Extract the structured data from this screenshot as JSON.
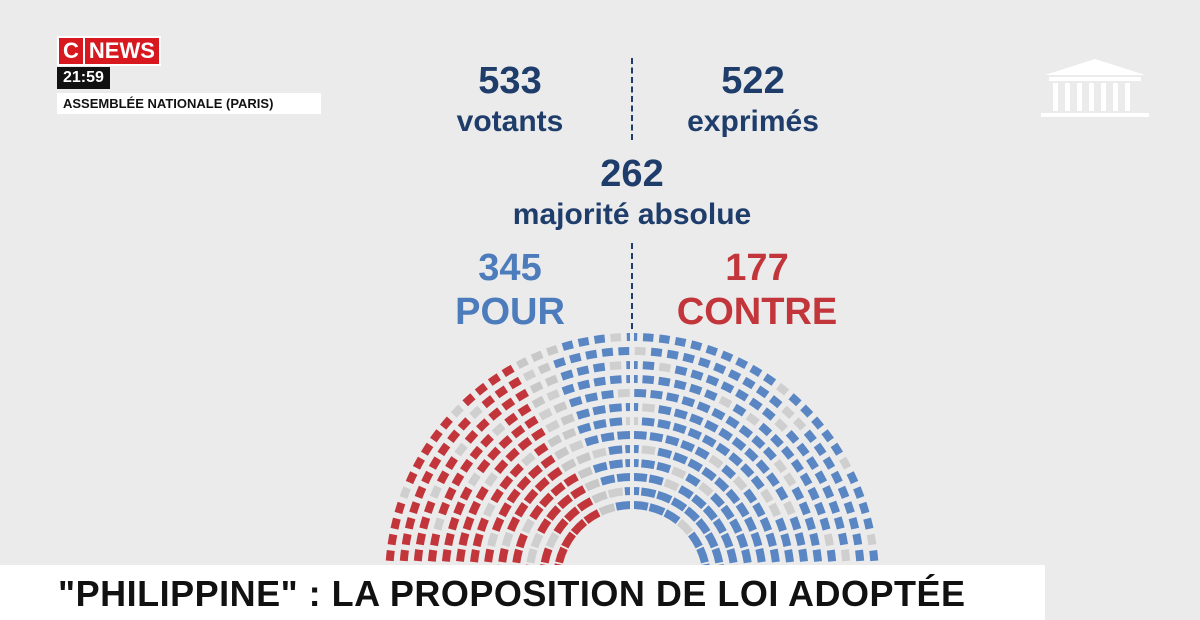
{
  "logo": {
    "letter": "C",
    "word": "NEWS"
  },
  "time": "21:59",
  "location": "ASSEMBLÉE NATIONALE (PARIS)",
  "results": {
    "voters": {
      "value": "533",
      "label": "votants"
    },
    "cast": {
      "value": "522",
      "label": "exprimés"
    },
    "majority": {
      "value": "262",
      "label": "majorité absolue"
    },
    "for": {
      "value": "345",
      "label": "POUR"
    },
    "against": {
      "value": "177",
      "label": "CONTRE"
    }
  },
  "headline": "\"PHILIPPINE\" : LA PROPOSITION DE LOI ADOPTÉE"
}
